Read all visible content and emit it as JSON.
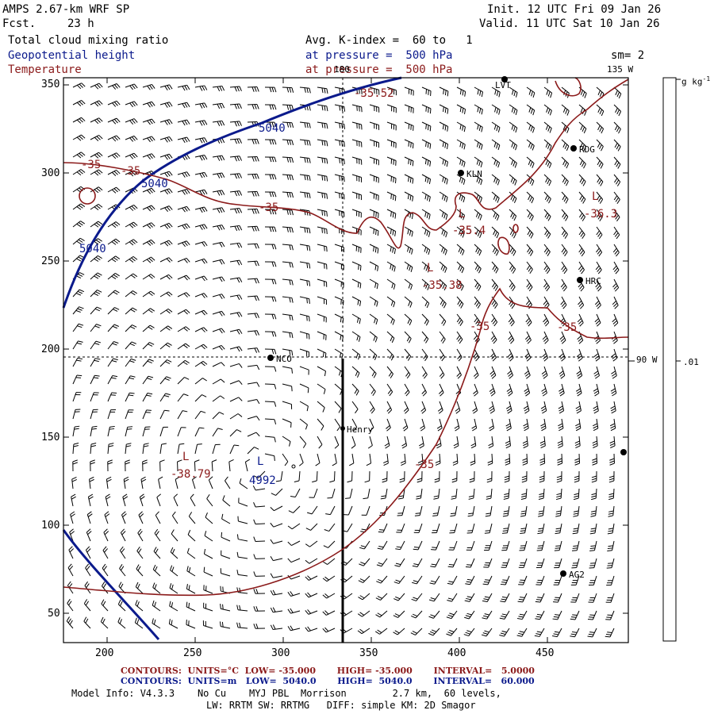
{
  "header": {
    "model": "AMPS 2.67-km WRF SP",
    "fcst_label": "Fcst.",
    "fcst_value": "23 h",
    "init": "Init. 12 UTC Fri 09 Jan 26",
    "valid": "Valid. 11 UTC Sat 10 Jan 26",
    "field1": "Total cloud mixing ratio",
    "field2": "Geopotential height",
    "field3": "Temperature",
    "avg": "Avg. K-index =  60 to   1",
    "pressure1": "at pressure =  500 hPa",
    "pressure2": "at pressure =  500 hPa",
    "smoothing": "sm= 2"
  },
  "map": {
    "x_ticks": [
      "200",
      "250",
      "300",
      "350",
      "400",
      "450"
    ],
    "y_ticks": [
      "350",
      "300",
      "250",
      "200",
      "150",
      "100",
      "50"
    ],
    "longitude_labels": [
      "180",
      "135 W",
      "90 W"
    ],
    "stations": [
      "LVT",
      "RDG",
      "KLN",
      "HRC",
      "NCO",
      "Henry",
      "AG2"
    ],
    "contour_labels_red": [
      "-35",
      "-35",
      "-35",
      "-35",
      "-35",
      "-35",
      "-35",
      "-35.52",
      "-35.4",
      "-36.3",
      "-35.38",
      "-38.79"
    ],
    "contour_labels_blue": [
      "5040",
      "5040",
      "5040",
      "4992"
    ],
    "low_markers": [
      "L",
      "L",
      "L",
      "L",
      "L"
    ],
    "colors": {
      "temperature": "#8b1a1a",
      "height": "#0b1a8c",
      "frame": "#000000"
    }
  },
  "colorbar": {
    "unit": "g kg-1",
    "unit_text": "g kg",
    "unit_sup": "-1",
    "value": ".01"
  },
  "footer": {
    "red_line": "CONTOURS:  UNITS=°C  LOW= -35.000       HIGH= -35.000       INTERVAL=   5.0000",
    "blue_line": "CONTOURS:  UNITS=m   LOW=  5040.0       HIGH=  5040.0       INTERVAL=   60.000",
    "model_info": "Model Info: V4.3.3    No Cu    MYJ PBL  Morrison        2.7 km,  60 levels,",
    "physics": "LW: RRTM SW: RRTMG   DIFF: simple KM: 2D Smagor"
  }
}
